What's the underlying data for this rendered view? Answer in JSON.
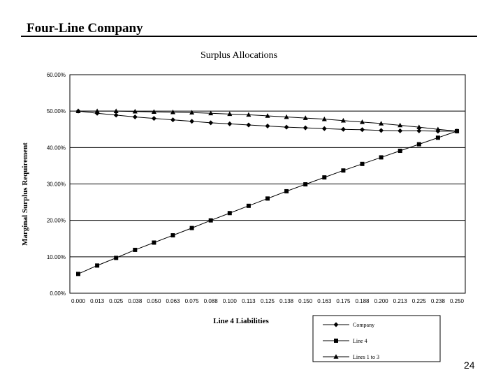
{
  "slide": {
    "title": "Four-Line Company",
    "page_number": "24"
  },
  "chart_data": {
    "type": "line",
    "title": "Surplus Allocations",
    "xlabel": "Line 4 Liabilities",
    "ylabel": "Marginal Surplus Requirement",
    "x": [
      0.0,
      0.0125,
      0.025,
      0.0375,
      0.05,
      0.0625,
      0.075,
      0.0875,
      0.1,
      0.1125,
      0.125,
      0.1375,
      0.15,
      0.1625,
      0.175,
      0.1875,
      0.2,
      0.2125,
      0.225,
      0.2375,
      0.25
    ],
    "x_tick_labels": [
      "0.000",
      "0.013",
      "0.025",
      "0.038",
      "0.050",
      "0.063",
      "0.075",
      "0.088",
      "0.100",
      "0.113",
      "0.125",
      "0.138",
      "0.150",
      "0.163",
      "0.175",
      "0.188",
      "0.200",
      "0.213",
      "0.225",
      "0.238",
      "0.250"
    ],
    "y_tick_labels": [
      "0.00%",
      "10.00%",
      "20.00%",
      "30.00%",
      "40.00%",
      "50.00%",
      "60.00%"
    ],
    "ylim": [
      0,
      60
    ],
    "grid": "horizontal",
    "legend_position": "bottom-right",
    "series": [
      {
        "name": "Company",
        "marker": "diamond",
        "values": [
          50.0,
          49.4,
          48.9,
          48.4,
          48.0,
          47.6,
          47.2,
          46.8,
          46.5,
          46.2,
          45.9,
          45.6,
          45.4,
          45.2,
          45.0,
          44.9,
          44.7,
          44.6,
          44.6,
          44.5,
          44.5
        ]
      },
      {
        "name": "Line 4",
        "marker": "square",
        "values": [
          5.3,
          7.6,
          9.7,
          11.9,
          13.9,
          15.9,
          17.9,
          20.0,
          22.0,
          24.0,
          26.0,
          28.0,
          29.9,
          31.8,
          33.7,
          35.5,
          37.3,
          39.1,
          40.9,
          42.7,
          44.5
        ]
      },
      {
        "name": "Lines 1 to 3",
        "marker": "triangle",
        "values": [
          50.0,
          50.0,
          50.0,
          49.9,
          49.8,
          49.7,
          49.6,
          49.4,
          49.2,
          49.0,
          48.7,
          48.4,
          48.1,
          47.8,
          47.4,
          47.0,
          46.6,
          46.1,
          45.6,
          45.0,
          44.5
        ]
      }
    ]
  }
}
